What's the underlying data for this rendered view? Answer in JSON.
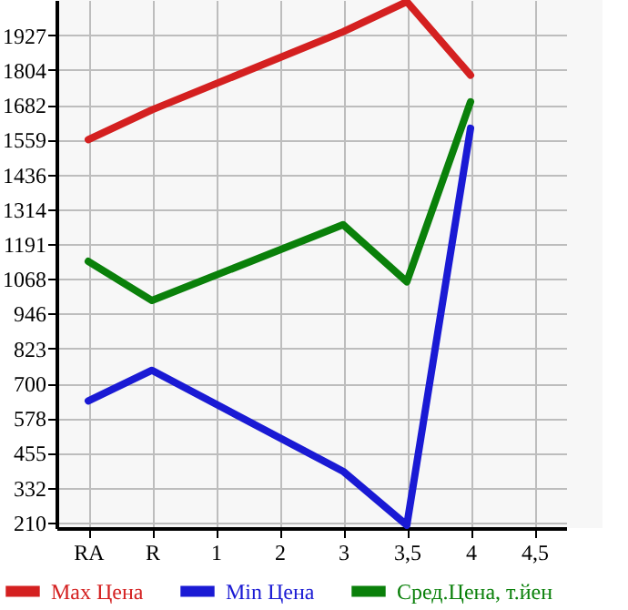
{
  "chart_data": {
    "type": "line",
    "categories": [
      "RA",
      "R",
      "1",
      "2",
      "3",
      "3,5",
      "4",
      "4,5"
    ],
    "series": [
      {
        "name": "Max Цена",
        "color": "#d42020",
        "values": [
          1559,
          1664,
          null,
          null,
          1939,
          2045,
          1786,
          null
        ]
      },
      {
        "name": "Min Цена",
        "color": "#1a1ad4",
        "values": [
          638,
          746,
          null,
          null,
          390,
          200,
          1599,
          null
        ]
      },
      {
        "name": "Сред.Цена, т.йен",
        "color": "#0a800a",
        "values": [
          1130,
          992,
          null,
          null,
          1259,
          1058,
          1692,
          null
        ]
      }
    ],
    "ylim": [
      190,
      2051
    ],
    "yticks": [
      210,
      332,
      455,
      578,
      700,
      823,
      946,
      1068,
      1191,
      1314,
      1436,
      1559,
      1682,
      1804,
      1927
    ],
    "grid": true,
    "legend": "bottom",
    "marker": "none",
    "line_style": "solid"
  }
}
